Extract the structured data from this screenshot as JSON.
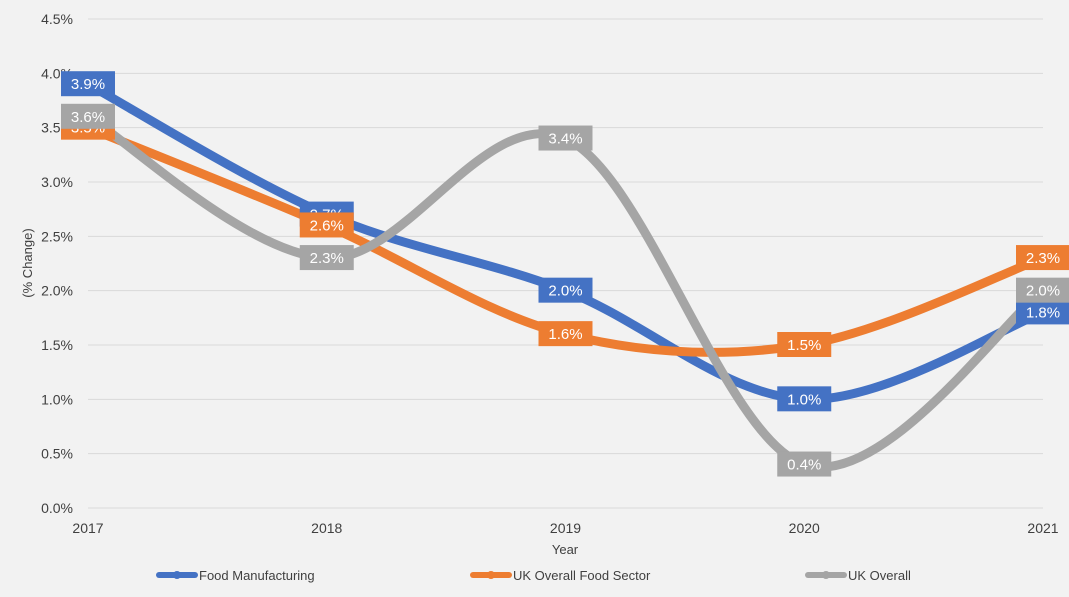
{
  "chart_data": {
    "type": "line",
    "title": "",
    "xlabel": "Year",
    "ylabel": "(% Change)",
    "categories": [
      "2017",
      "2018",
      "2019",
      "2020",
      "2021"
    ],
    "ylim": [
      0,
      4.5
    ],
    "yticks": [
      0,
      0.5,
      1.0,
      1.5,
      2.0,
      2.5,
      3.0,
      3.5,
      4.0,
      4.5
    ],
    "ytick_labels": [
      "0.0%",
      "0.5%",
      "1.0%",
      "1.5%",
      "2.0%",
      "2.5%",
      "3.0%",
      "3.5%",
      "4.0%",
      "4.5%"
    ],
    "grid": true,
    "smooth": true,
    "legend_position": "bottom",
    "series": [
      {
        "name": "Food Manufacturing",
        "color": "#4472c4",
        "values": [
          3.9,
          2.7,
          2.0,
          1.0,
          1.8
        ],
        "labels": [
          "3.9%",
          "2.7%",
          "2.0%",
          "1.0%",
          "1.8%"
        ]
      },
      {
        "name": "UK Overall Food Sector",
        "color": "#ed7d31",
        "values": [
          3.5,
          2.6,
          1.6,
          1.5,
          2.3
        ],
        "labels": [
          "3.5%",
          "2.6%",
          "1.6%",
          "1.5%",
          "2.3%"
        ]
      },
      {
        "name": "UK Overall",
        "color": "#a5a5a5",
        "values": [
          3.6,
          2.3,
          3.4,
          0.4,
          2.0
        ],
        "labels": [
          "3.6%",
          "2.3%",
          "3.4%",
          "0.4%",
          "2.0%"
        ]
      }
    ]
  }
}
